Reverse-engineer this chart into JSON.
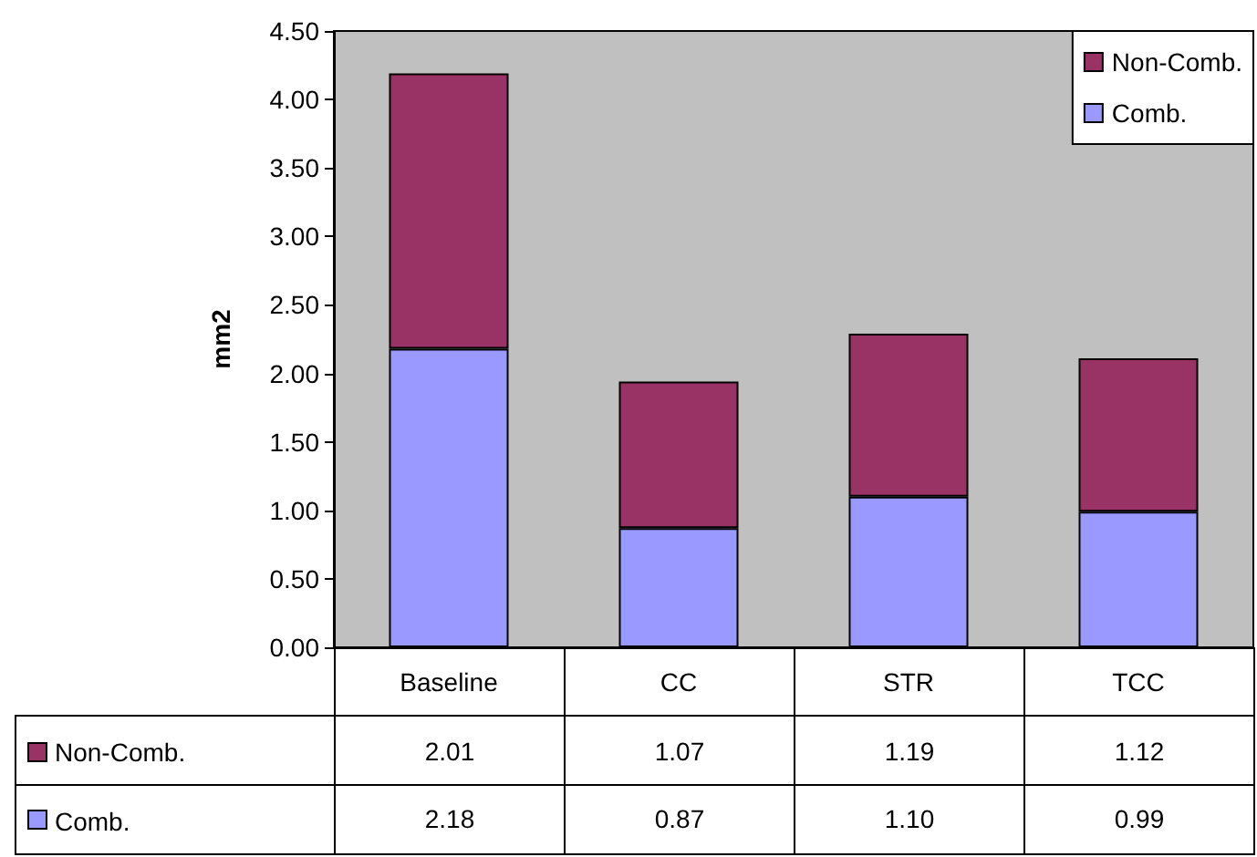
{
  "chart_data": {
    "type": "bar",
    "stacked": true,
    "ylabel": "mm2",
    "categories": [
      "Baseline",
      "CC",
      "STR",
      "TCC"
    ],
    "series": [
      {
        "name": "Comb.",
        "color": "#9999ff",
        "values": [
          2.18,
          0.87,
          1.1,
          0.99
        ],
        "value_labels": [
          "2.18",
          "0.87",
          "1.10",
          "0.99"
        ]
      },
      {
        "name": "Non-Comb.",
        "color": "#993366",
        "values": [
          2.01,
          1.07,
          1.19,
          1.12
        ],
        "value_labels": [
          "2.01",
          "1.07",
          "1.19",
          "1.12"
        ]
      }
    ],
    "ylim": [
      0,
      4.5
    ],
    "yticks": [
      {
        "value": 0,
        "label": "0.00"
      },
      {
        "value": 0.5,
        "label": "0.50"
      },
      {
        "value": 1,
        "label": "1.00"
      },
      {
        "value": 1.5,
        "label": "1.50"
      },
      {
        "value": 2,
        "label": "2.00"
      },
      {
        "value": 2.5,
        "label": "2.50"
      },
      {
        "value": 3,
        "label": "3.00"
      },
      {
        "value": 3.5,
        "label": "3.50"
      },
      {
        "value": 4,
        "label": "4.00"
      },
      {
        "value": 4.5,
        "label": "4.50"
      }
    ],
    "grid": false,
    "legend": "top right"
  }
}
